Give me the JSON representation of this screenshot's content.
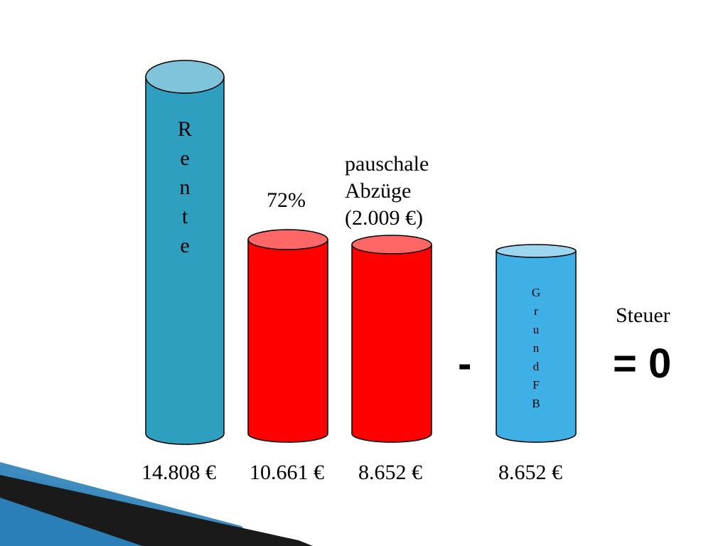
{
  "slide": {
    "rente_letters": [
      "R",
      "e",
      "n",
      "t",
      "e"
    ],
    "grundfb_letters": [
      "G",
      "r",
      "u",
      "n",
      "d",
      "F",
      "B"
    ],
    "percent_label": "72%",
    "pauschale_lines": [
      "pauschale",
      "Abzüge",
      "(2.009 €)"
    ],
    "minus_sign": "-",
    "steuer_label": "Steuer",
    "steuer_result": "= 0",
    "values": [
      "14.808 €",
      "10.661 €",
      "8.652 €",
      "8.652 €"
    ]
  },
  "colors": {
    "rente_body": "#2f9fc0",
    "rente_top": "#7fc4da",
    "red_body": "#ff0000",
    "red_top": "#ff6666",
    "grund_body": "#3fb0e6",
    "grund_top": "#9ed6f0",
    "corner_dark": "#1a1a1a",
    "corner_blue": "#2a7fb8",
    "corner_light": "#bfe0f0"
  }
}
